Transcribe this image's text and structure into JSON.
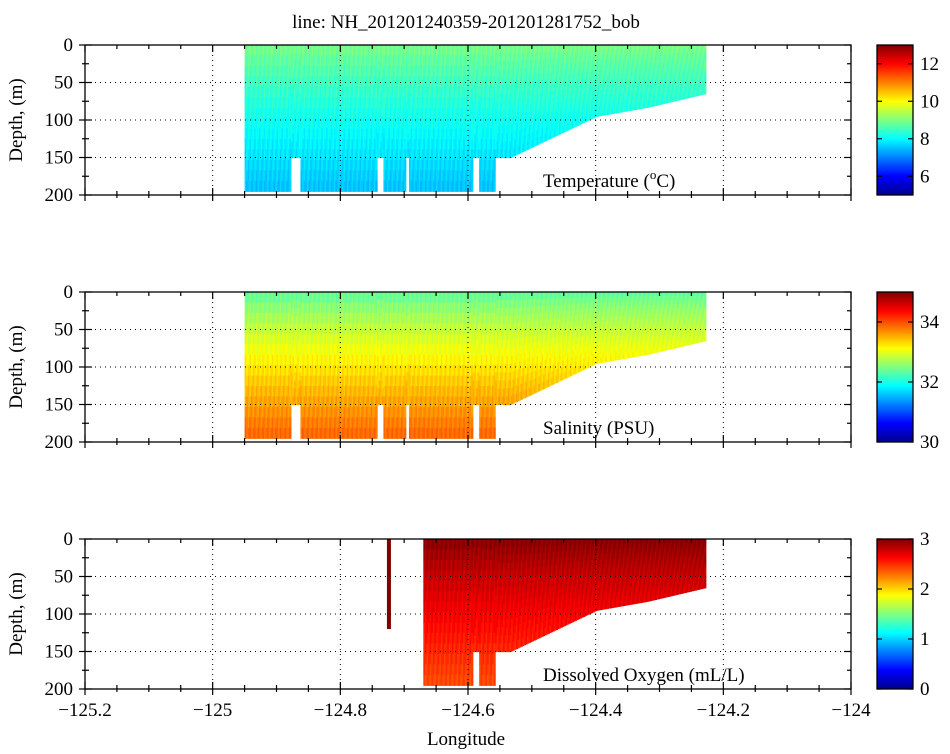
{
  "title": "line: NH_201201240359-201201281752_bob",
  "xlabel": "Longitude",
  "chart_data": [
    {
      "type": "heatmap",
      "title": "Temperature (°C)",
      "xlabel": "Longitude",
      "ylabel": "Depth, (m)",
      "xlim": [
        -125.2,
        -124.0
      ],
      "ylim": [
        200,
        0
      ],
      "xticks": [
        "-125.2",
        "-125",
        "-124.8",
        "-124.6",
        "-124.4",
        "-124.2",
        "-124"
      ],
      "yticks": [
        "0",
        "50",
        "100",
        "150",
        "200"
      ],
      "colorbar": {
        "range": [
          5,
          13
        ],
        "ticks": [
          "6",
          "8",
          "10",
          "12"
        ]
      },
      "data_extent": {
        "lon_min": -124.95,
        "lon_max": -124.23,
        "max_depth": 195
      },
      "surface_value": 9.0,
      "bottom_value": 7.5,
      "label_text_main": "Temperature (",
      "label_text_sup": "o",
      "label_text_end": "C)"
    },
    {
      "type": "heatmap",
      "title": "Salinity (PSU)",
      "xlabel": "Longitude",
      "ylabel": "Depth, (m)",
      "xlim": [
        -125.2,
        -124.0
      ],
      "ylim": [
        200,
        0
      ],
      "xticks": [
        "-125.2",
        "-125",
        "-124.8",
        "-124.6",
        "-124.4",
        "-124.2",
        "-124"
      ],
      "yticks": [
        "0",
        "50",
        "100",
        "150",
        "200"
      ],
      "colorbar": {
        "range": [
          30,
          35
        ],
        "ticks": [
          "30",
          "32",
          "34"
        ]
      },
      "data_extent": {
        "lon_min": -124.95,
        "lon_max": -124.23,
        "max_depth": 195
      },
      "surface_value": 32.3,
      "bottom_value": 33.9
    },
    {
      "type": "heatmap",
      "title": "Dissolved Oxygen (mL/L)",
      "xlabel": "Longitude",
      "ylabel": "Depth, (m)",
      "xlim": [
        -125.2,
        -124.0
      ],
      "ylim": [
        200,
        0
      ],
      "xticks": [
        "-125.2",
        "-125",
        "-124.8",
        "-124.6",
        "-124.4",
        "-124.2",
        "-124"
      ],
      "yticks": [
        "0",
        "50",
        "100",
        "150",
        "200"
      ],
      "colorbar": {
        "range": [
          0,
          3
        ],
        "ticks": [
          "0",
          "1",
          "2",
          "3"
        ]
      },
      "data_extent": {
        "lon_min": -124.67,
        "lon_max": -124.23,
        "max_depth": 195
      },
      "surface_value": 3.0,
      "bottom_value": 2.4
    }
  ]
}
